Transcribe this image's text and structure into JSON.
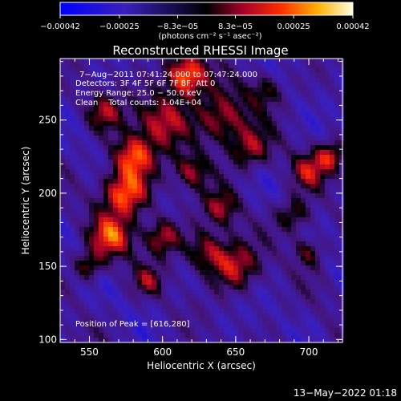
{
  "chart_data": {
    "type": "heatmap",
    "title": "Reconstructed RHESSI Image",
    "xlabel": "Heliocentric X (arcsec)",
    "ylabel": "Heliocentric Y (arcsec)",
    "xlim": [
      530,
      723
    ],
    "ylim": [
      98,
      292
    ],
    "x_ticks": [
      550,
      600,
      650,
      700
    ],
    "y_ticks": [
      100,
      150,
      200,
      250
    ],
    "colorbar": {
      "min": -0.00042,
      "max": 0.00042,
      "ticks": [
        {
          "value": -0.00042,
          "label": "−0.00042"
        },
        {
          "value": -0.00025,
          "label": "−0.00025"
        },
        {
          "value": -8.3e-05,
          "label": "−8.3e−05"
        },
        {
          "value": 8.3e-05,
          "label": "8.3e−05"
        },
        {
          "value": 0.00025,
          "label": "0.00025"
        },
        {
          "value": 0.00042,
          "label": "0.00042"
        }
      ],
      "units": "(photons cm⁻² s⁻¹ asec⁻²)"
    },
    "annotations": [
      "7−Aug−2011 07:41:24.000 to 07:47:24.000",
      "Detectors: 3F 4F 5F 6F 7F 8F, Att 0",
      "Energy Range: 25.0 − 50.0 keV",
      "Clean    Total counts: 1.04E+04",
      "Position of Peak = [616,280]"
    ],
    "peak": [
      616,
      280
    ],
    "timestamp": "13−May−2022 01:18"
  }
}
